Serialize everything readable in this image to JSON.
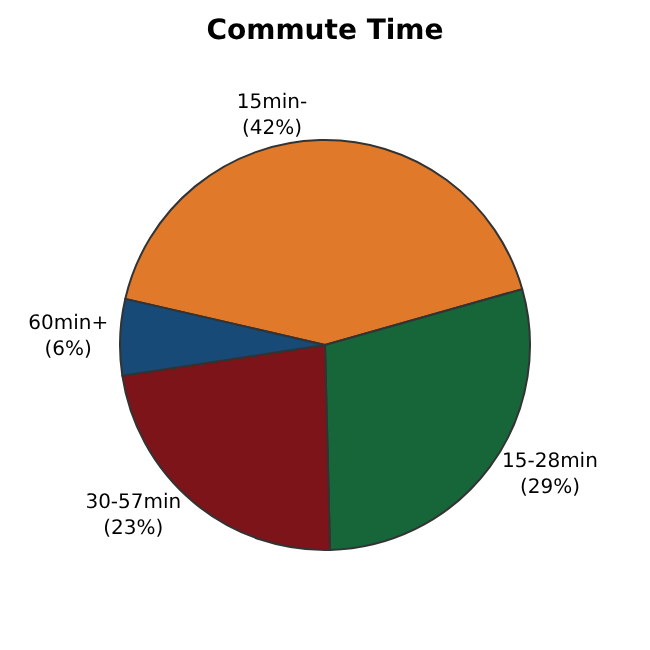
{
  "chart_data": {
    "type": "pie",
    "title": "Commute Time",
    "categories": [
      "15min-",
      "15-28min",
      "30-57min",
      "60min+"
    ],
    "values": [
      42,
      29,
      23,
      6
    ],
    "value_labels": [
      "(42%)",
      "(29%)",
      "(23%)",
      "(6%)"
    ],
    "colors": [
      "#e07a2a",
      "#17663a",
      "#7c1419",
      "#174a76"
    ],
    "legend": false
  }
}
